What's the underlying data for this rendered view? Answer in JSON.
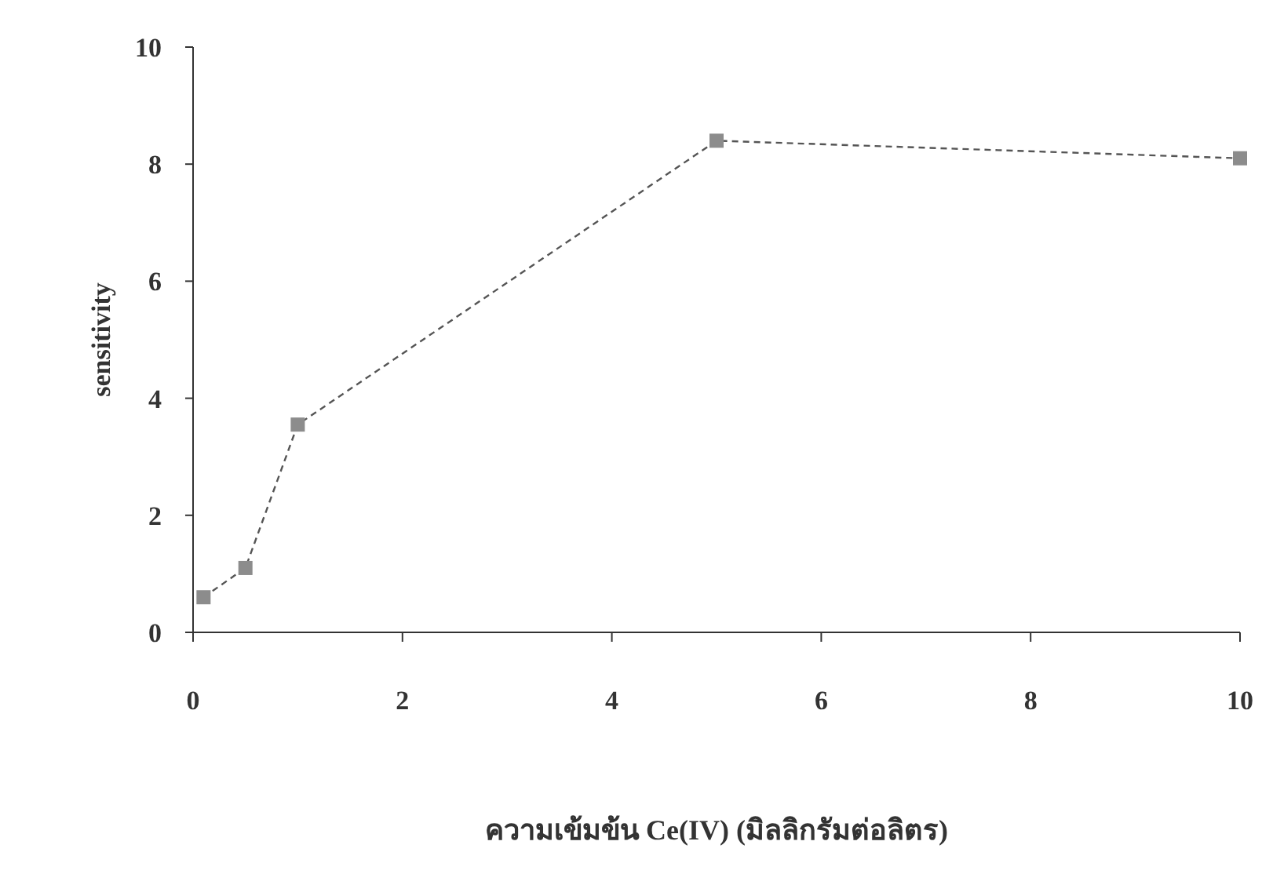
{
  "chart_data": {
    "type": "line",
    "xlabel": "ความเข้มข้น Ce(IV)  (มิลลิกรัมต่อลิตร)",
    "ylabel": "sensitivity",
    "x": [
      0.1,
      0.5,
      1,
      5,
      10
    ],
    "series": [
      {
        "color": "#8c8c8c",
        "values": [
          0.6,
          1.1,
          3.55,
          8.4,
          8.1
        ]
      }
    ],
    "xlim": [
      0,
      10
    ],
    "xticks": [
      0,
      2,
      4,
      6,
      8,
      10
    ],
    "ylim": [
      0,
      10
    ],
    "yticks": [
      0,
      2,
      4,
      6,
      8,
      10
    ],
    "marker": "square",
    "line_style": "dashed",
    "grid": false
  }
}
